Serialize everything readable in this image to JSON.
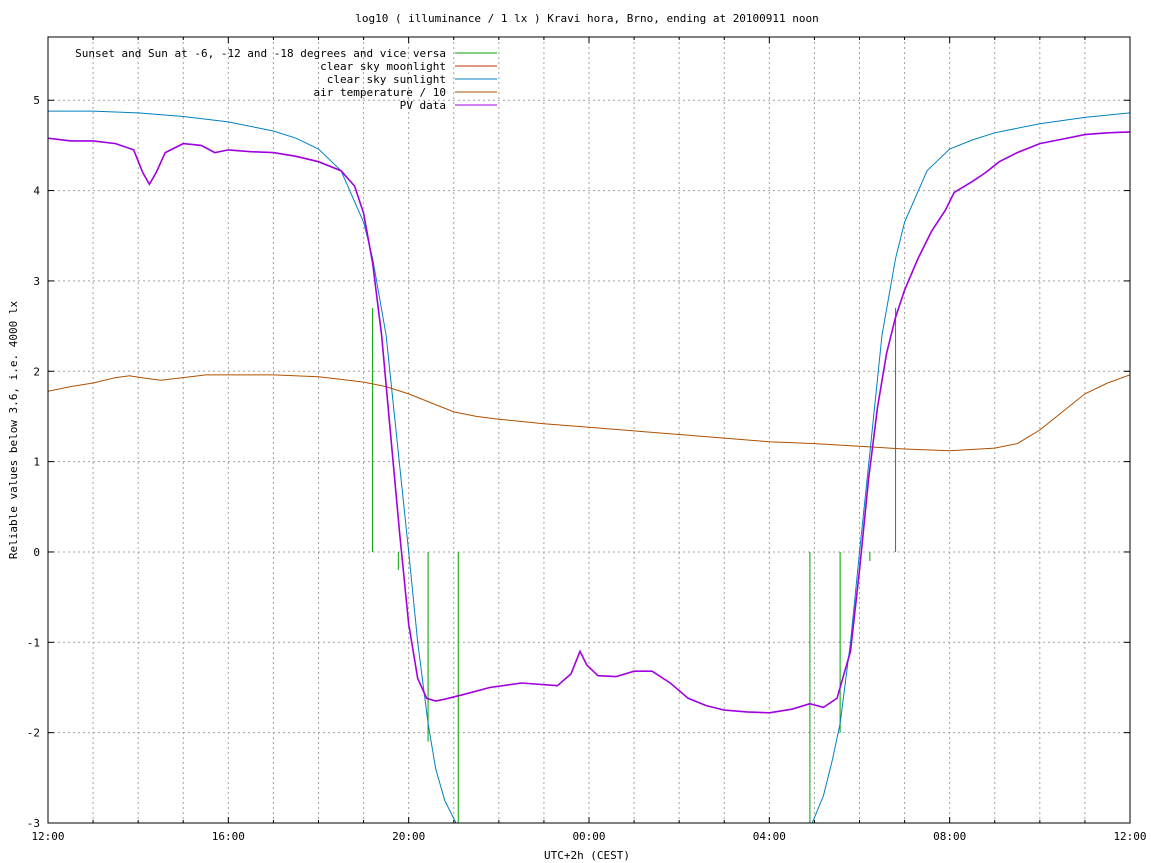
{
  "chart_data": {
    "type": "line",
    "title": "log10 ( illuminance / 1 lx ) Kravi hora, Brno, ending at 20100911 noon",
    "xlabel": "UTC+2h (CEST)",
    "ylabel": "Reliable values below 3.6, i.e. 4000 lx",
    "x_unit": "hours since 2010-09-10 12:00 UTC+2",
    "xlim": [
      0,
      24
    ],
    "ylim": [
      -3,
      5.7
    ],
    "grid": true,
    "legend_position": "top-right",
    "x_ticks": [
      {
        "value": 0,
        "label": "12:00"
      },
      {
        "value": 4,
        "label": "16:00"
      },
      {
        "value": 8,
        "label": "20:00"
      },
      {
        "value": 12,
        "label": "00:00"
      },
      {
        "value": 16,
        "label": "04:00"
      },
      {
        "value": 20,
        "label": "08:00"
      },
      {
        "value": 24,
        "label": "12:00"
      }
    ],
    "y_ticks": [
      {
        "value": -3,
        "label": "-3"
      },
      {
        "value": -2,
        "label": "-2"
      },
      {
        "value": -1,
        "label": "-1"
      },
      {
        "value": 0,
        "label": "0"
      },
      {
        "value": 1,
        "label": "1"
      },
      {
        "value": 2,
        "label": "2"
      },
      {
        "value": 3,
        "label": "3"
      },
      {
        "value": 4,
        "label": "4"
      },
      {
        "value": 5,
        "label": "5"
      }
    ],
    "series": [
      {
        "name": "Sunset and Sun at -6, -12 and -18 degrees and vice versa",
        "color": "#00a000",
        "kind": "impulses",
        "points": [
          [
            7.2,
            2.7
          ],
          [
            7.77,
            -0.2
          ],
          [
            8.43,
            -2.1
          ],
          [
            9.1,
            -3.0
          ],
          [
            16.9,
            -3.0
          ],
          [
            17.57,
            -2.0
          ],
          [
            18.23,
            -0.1
          ],
          [
            18.8,
            2.7
          ]
        ]
      },
      {
        "name": "clear sky moonlight",
        "color": "#c03000",
        "kind": "line",
        "points": []
      },
      {
        "name": "clear sky sunlight",
        "color": "#0080c0",
        "kind": "line",
        "points": [
          [
            0,
            4.88
          ],
          [
            1,
            4.88
          ],
          [
            2,
            4.86
          ],
          [
            3,
            4.82
          ],
          [
            4,
            4.76
          ],
          [
            5,
            4.66
          ],
          [
            5.5,
            4.58
          ],
          [
            6,
            4.46
          ],
          [
            6.5,
            4.22
          ],
          [
            7,
            3.65
          ],
          [
            7.2,
            3.25
          ],
          [
            7.5,
            2.4
          ],
          [
            7.77,
            1.1
          ],
          [
            8,
            0.0
          ],
          [
            8.2,
            -1.0
          ],
          [
            8.43,
            -1.9
          ],
          [
            8.6,
            -2.4
          ],
          [
            8.8,
            -2.75
          ],
          [
            9.05,
            -3.0
          ]
        ],
        "points2": [
          [
            16.95,
            -3.0
          ],
          [
            17.2,
            -2.7
          ],
          [
            17.4,
            -2.3
          ],
          [
            17.57,
            -1.9
          ],
          [
            17.8,
            -1.0
          ],
          [
            18.0,
            0.0
          ],
          [
            18.23,
            1.1
          ],
          [
            18.5,
            2.4
          ],
          [
            18.8,
            3.25
          ],
          [
            19.0,
            3.65
          ],
          [
            19.5,
            4.22
          ],
          [
            20,
            4.46
          ],
          [
            20.5,
            4.56
          ],
          [
            21,
            4.64
          ],
          [
            22,
            4.74
          ],
          [
            23,
            4.81
          ],
          [
            24,
            4.86
          ]
        ]
      },
      {
        "name": "air temperature / 10",
        "color": "#b05000",
        "kind": "line",
        "points": [
          [
            0,
            1.78
          ],
          [
            0.5,
            1.83
          ],
          [
            1,
            1.87
          ],
          [
            1.5,
            1.93
          ],
          [
            1.8,
            1.95
          ],
          [
            2.2,
            1.92
          ],
          [
            2.5,
            1.9
          ],
          [
            3,
            1.93
          ],
          [
            3.5,
            1.96
          ],
          [
            4,
            1.96
          ],
          [
            5,
            1.96
          ],
          [
            6,
            1.94
          ],
          [
            6.5,
            1.91
          ],
          [
            7,
            1.88
          ],
          [
            7.5,
            1.83
          ],
          [
            8,
            1.75
          ],
          [
            8.5,
            1.65
          ],
          [
            9,
            1.55
          ],
          [
            9.5,
            1.5
          ],
          [
            10,
            1.47
          ],
          [
            11,
            1.42
          ],
          [
            12,
            1.38
          ],
          [
            13,
            1.34
          ],
          [
            14,
            1.3
          ],
          [
            15,
            1.26
          ],
          [
            16,
            1.22
          ],
          [
            17,
            1.2
          ],
          [
            18,
            1.17
          ],
          [
            19,
            1.14
          ],
          [
            20,
            1.12
          ],
          [
            21,
            1.15
          ],
          [
            21.5,
            1.2
          ],
          [
            22,
            1.35
          ],
          [
            22.5,
            1.55
          ],
          [
            23,
            1.75
          ],
          [
            23.5,
            1.87
          ],
          [
            24,
            1.96
          ]
        ]
      },
      {
        "name": "PV data",
        "color": "#a000e0",
        "kind": "line",
        "points": [
          [
            0,
            4.58
          ],
          [
            0.5,
            4.55
          ],
          [
            1,
            4.55
          ],
          [
            1.5,
            4.52
          ],
          [
            1.9,
            4.45
          ],
          [
            2.1,
            4.2
          ],
          [
            2.25,
            4.07
          ],
          [
            2.4,
            4.2
          ],
          [
            2.6,
            4.42
          ],
          [
            3,
            4.52
          ],
          [
            3.4,
            4.5
          ],
          [
            3.7,
            4.42
          ],
          [
            4,
            4.45
          ],
          [
            4.5,
            4.43
          ],
          [
            5,
            4.42
          ],
          [
            5.5,
            4.38
          ],
          [
            6,
            4.32
          ],
          [
            6.5,
            4.22
          ],
          [
            6.8,
            4.05
          ],
          [
            7,
            3.75
          ],
          [
            7.2,
            3.2
          ],
          [
            7.4,
            2.4
          ],
          [
            7.6,
            1.3
          ],
          [
            7.8,
            0.2
          ],
          [
            8,
            -0.8
          ],
          [
            8.2,
            -1.4
          ],
          [
            8.4,
            -1.62
          ],
          [
            8.6,
            -1.65
          ],
          [
            8.8,
            -1.63
          ],
          [
            9.2,
            -1.58
          ],
          [
            9.8,
            -1.5
          ],
          [
            10.5,
            -1.45
          ],
          [
            11.3,
            -1.48
          ],
          [
            11.6,
            -1.35
          ],
          [
            11.8,
            -1.1
          ],
          [
            11.95,
            -1.25
          ],
          [
            12.2,
            -1.37
          ],
          [
            12.6,
            -1.38
          ],
          [
            13,
            -1.32
          ],
          [
            13.4,
            -1.32
          ],
          [
            13.8,
            -1.45
          ],
          [
            14.2,
            -1.62
          ],
          [
            14.6,
            -1.7
          ],
          [
            15,
            -1.75
          ],
          [
            15.5,
            -1.77
          ],
          [
            16,
            -1.78
          ],
          [
            16.5,
            -1.74
          ],
          [
            16.9,
            -1.68
          ],
          [
            17.2,
            -1.72
          ],
          [
            17.5,
            -1.62
          ],
          [
            17.8,
            -1.1
          ],
          [
            18,
            -0.2
          ],
          [
            18.2,
            0.8
          ],
          [
            18.4,
            1.6
          ],
          [
            18.6,
            2.2
          ],
          [
            18.8,
            2.6
          ],
          [
            19,
            2.9
          ],
          [
            19.3,
            3.25
          ],
          [
            19.6,
            3.55
          ],
          [
            19.9,
            3.78
          ],
          [
            20.1,
            3.98
          ],
          [
            20.5,
            4.1
          ],
          [
            20.8,
            4.2
          ],
          [
            21.1,
            4.32
          ],
          [
            21.5,
            4.42
          ],
          [
            22,
            4.52
          ],
          [
            22.5,
            4.57
          ],
          [
            23,
            4.62
          ],
          [
            23.5,
            4.64
          ],
          [
            24,
            4.65
          ]
        ]
      }
    ]
  }
}
